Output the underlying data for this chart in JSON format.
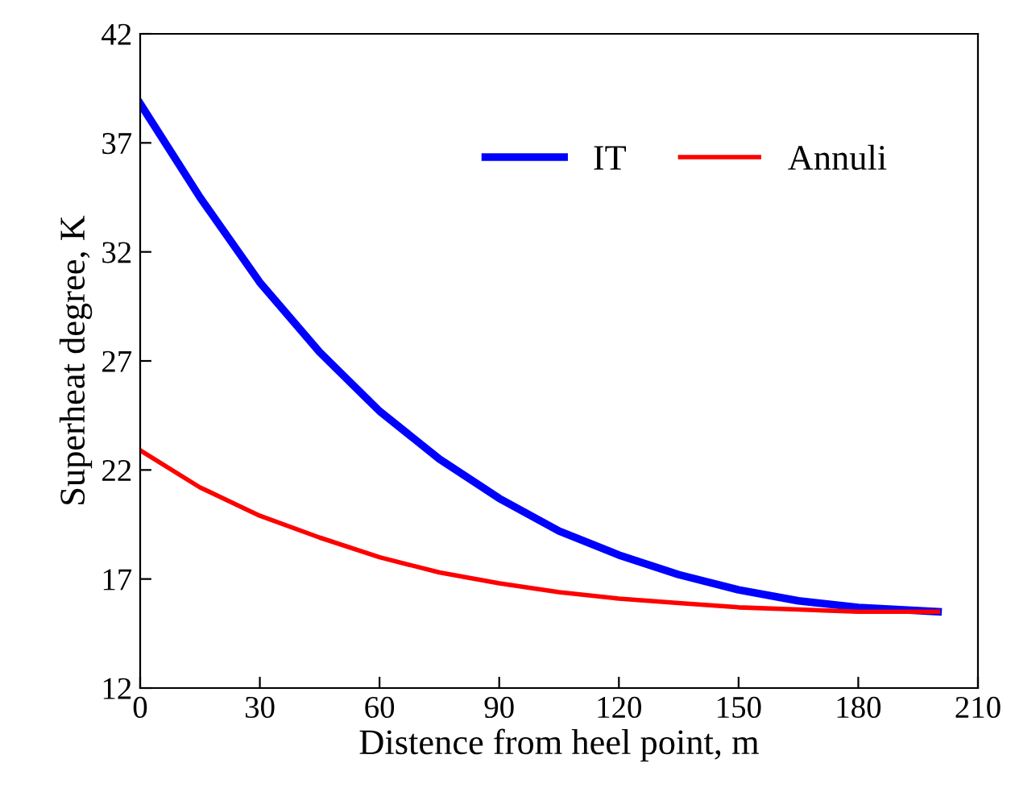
{
  "chart_data": {
    "type": "line",
    "xlabel": "Distence from heel point, m",
    "ylabel": "Superheat degree, K",
    "xlim": [
      0,
      210
    ],
    "xticks": [
      0,
      30,
      60,
      90,
      120,
      150,
      180,
      210
    ],
    "ylim": [
      12,
      42
    ],
    "yticks": [
      12,
      17,
      22,
      27,
      32,
      37,
      42
    ],
    "grid": false,
    "legend": "top right",
    "marker": "none",
    "line_style": "solid",
    "series": [
      {
        "name": "IT",
        "color": "#0000ff",
        "x": [
          0,
          15,
          30,
          45,
          60,
          75,
          90,
          105,
          120,
          135,
          150,
          165,
          180,
          200
        ],
        "values": [
          38.8,
          34.5,
          30.6,
          27.4,
          24.7,
          22.5,
          20.7,
          19.2,
          18.1,
          17.2,
          16.5,
          16.0,
          15.7,
          15.5
        ]
      },
      {
        "name": "Annuli",
        "color": "#ff0000",
        "x": [
          0,
          15,
          30,
          45,
          60,
          75,
          90,
          105,
          120,
          135,
          150,
          165,
          180,
          200
        ],
        "values": [
          22.9,
          21.2,
          19.9,
          18.9,
          18.0,
          17.3,
          16.8,
          16.4,
          16.1,
          15.9,
          15.7,
          15.6,
          15.5,
          15.5
        ]
      }
    ]
  }
}
